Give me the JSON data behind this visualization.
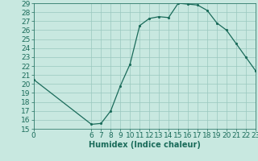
{
  "x": [
    0,
    6,
    7,
    8,
    9,
    10,
    11,
    12,
    13,
    14,
    15,
    16,
    17,
    18,
    19,
    20,
    21,
    22,
    23
  ],
  "y": [
    20.5,
    15.5,
    15.6,
    17.0,
    19.8,
    22.2,
    26.5,
    27.3,
    27.5,
    27.4,
    29.0,
    28.9,
    28.8,
    28.2,
    26.8,
    26.0,
    24.5,
    23.0,
    21.5
  ],
  "line_color": "#1a6b5a",
  "marker_color": "#1a6b5a",
  "bg_color": "#c8e8e0",
  "grid_color": "#9ac8be",
  "xlabel": "Humidex (Indice chaleur)",
  "xlim": [
    0,
    23
  ],
  "ylim": [
    15,
    29
  ],
  "yticks": [
    15,
    16,
    17,
    18,
    19,
    20,
    21,
    22,
    23,
    24,
    25,
    26,
    27,
    28,
    29
  ],
  "xticks": [
    0,
    6,
    7,
    8,
    9,
    10,
    11,
    12,
    13,
    14,
    15,
    16,
    17,
    18,
    19,
    20,
    21,
    22,
    23
  ],
  "font_color": "#1a6b5a",
  "font_size": 6.5
}
